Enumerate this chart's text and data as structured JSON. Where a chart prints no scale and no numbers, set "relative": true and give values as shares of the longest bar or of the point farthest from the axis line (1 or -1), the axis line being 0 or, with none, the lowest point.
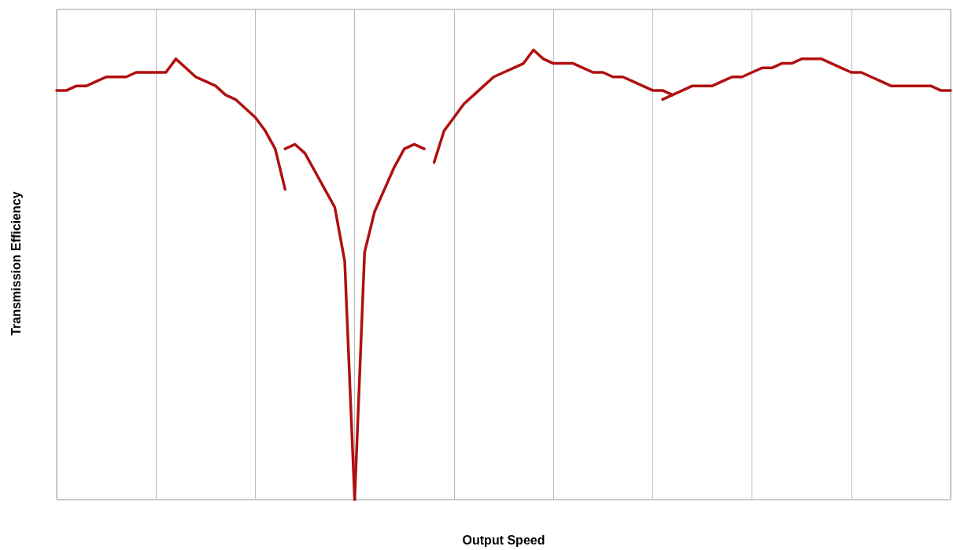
{
  "chart_data": {
    "type": "line",
    "xlabel": "Output Speed",
    "ylabel": "Transmission Efficiency",
    "relative": true,
    "grid": "x",
    "marker": "none",
    "categories": [
      null,
      null,
      null,
      null,
      null,
      null,
      null,
      null,
      null,
      null,
      null,
      null,
      null,
      null,
      null,
      null,
      null,
      null,
      null,
      null,
      null,
      null,
      null,
      null,
      null,
      null,
      null,
      null,
      null,
      null,
      null,
      null,
      null,
      null,
      null,
      null,
      null,
      null,
      null,
      null,
      null,
      null,
      null,
      null,
      null,
      null,
      null,
      null,
      null,
      null,
      null,
      null,
      null,
      null,
      null,
      null,
      null,
      null,
      null,
      null,
      null,
      null,
      null,
      null,
      null,
      null,
      null,
      null,
      null,
      null,
      null,
      null,
      null,
      null,
      null,
      null,
      null,
      null,
      null,
      null,
      null,
      null,
      null,
      null,
      null,
      null,
      null,
      null,
      null,
      null,
      null
    ],
    "series": [
      {
        "color": "#b01010",
        "values": [
          0.91,
          0.91,
          0.92,
          0.92,
          0.93,
          0.94,
          0.94,
          0.94,
          0.95,
          0.95,
          0.95,
          0.95,
          0.98,
          0.96,
          0.94,
          0.93,
          0.92,
          0.9,
          0.89,
          0.87,
          0.85,
          0.82,
          0.78,
          0.69,
          null,
          null,
          null,
          null,
          null,
          null,
          null,
          null,
          null,
          null,
          null,
          null,
          null,
          null,
          null,
          null,
          null,
          null,
          null,
          null,
          null,
          null,
          null,
          null,
          null,
          null,
          null,
          null,
          null,
          null,
          null,
          null,
          null,
          null,
          null,
          null,
          null,
          null,
          null,
          null,
          null,
          null,
          null,
          null,
          null,
          null,
          null,
          null,
          null,
          null,
          null,
          null,
          null,
          null,
          null,
          null,
          null,
          null,
          null,
          null,
          null,
          null,
          null,
          null,
          null,
          null,
          null
        ]
      },
      {
        "color": "#b01010",
        "values": [
          null,
          null,
          null,
          null,
          null,
          null,
          null,
          null,
          null,
          null,
          null,
          null,
          null,
          null,
          null,
          null,
          null,
          null,
          null,
          null,
          null,
          null,
          null,
          0.78,
          0.79,
          0.77,
          0.73,
          0.69,
          0.65,
          0.53,
          0,
          null,
          null,
          null,
          null,
          null,
          null,
          null,
          null,
          null,
          null,
          null,
          null,
          null,
          null,
          null,
          null,
          null,
          null,
          null,
          null,
          null,
          null,
          null,
          null,
          null,
          null,
          null,
          null,
          null,
          null,
          null,
          null,
          null,
          null,
          null,
          null,
          null,
          null,
          null,
          null,
          null,
          null,
          null,
          null,
          null,
          null,
          null,
          null,
          null,
          null,
          null,
          null,
          null,
          null,
          null,
          null,
          null,
          null,
          null,
          null
        ]
      },
      {
        "color": "#b01010",
        "values": [
          null,
          null,
          null,
          null,
          null,
          null,
          null,
          null,
          null,
          null,
          null,
          null,
          null,
          null,
          null,
          null,
          null,
          null,
          null,
          null,
          null,
          null,
          null,
          null,
          null,
          null,
          null,
          null,
          null,
          null,
          0,
          0.55,
          0.64,
          0.69,
          0.74,
          0.78,
          0.79,
          0.78,
          null,
          null,
          null,
          null,
          null,
          null,
          null,
          null,
          null,
          null,
          null,
          null,
          null,
          null,
          null,
          null,
          null,
          null,
          null,
          null,
          null,
          null,
          null,
          null,
          null,
          null,
          null,
          null,
          null,
          null,
          null,
          null,
          null,
          null,
          null,
          null,
          null,
          null,
          null,
          null,
          null,
          null,
          null,
          null,
          null,
          null,
          null,
          null,
          null,
          null,
          null,
          null,
          null
        ]
      },
      {
        "color": "#b01010",
        "values": [
          null,
          null,
          null,
          null,
          null,
          null,
          null,
          null,
          null,
          null,
          null,
          null,
          null,
          null,
          null,
          null,
          null,
          null,
          null,
          null,
          null,
          null,
          null,
          null,
          null,
          null,
          null,
          null,
          null,
          null,
          null,
          null,
          null,
          null,
          null,
          null,
          null,
          null,
          0.75,
          0.82,
          0.85,
          0.88,
          0.9,
          0.92,
          0.94,
          0.95,
          0.96,
          0.97,
          1.0,
          0.98,
          0.97,
          0.97,
          0.97,
          0.96,
          0.95,
          0.95,
          0.94,
          0.94,
          0.93,
          0.92,
          0.91,
          0.91,
          0.9,
          null,
          null,
          null,
          null,
          null,
          null,
          null,
          null,
          null,
          null,
          null,
          null,
          null,
          null,
          null,
          null,
          null,
          null,
          null,
          null,
          null,
          null,
          null,
          null,
          null,
          null,
          null,
          null
        ]
      },
      {
        "color": "#b01010",
        "values": [
          null,
          null,
          null,
          null,
          null,
          null,
          null,
          null,
          null,
          null,
          null,
          null,
          null,
          null,
          null,
          null,
          null,
          null,
          null,
          null,
          null,
          null,
          null,
          null,
          null,
          null,
          null,
          null,
          null,
          null,
          null,
          null,
          null,
          null,
          null,
          null,
          null,
          null,
          null,
          null,
          null,
          null,
          null,
          null,
          null,
          null,
          null,
          null,
          null,
          null,
          null,
          null,
          null,
          null,
          null,
          null,
          null,
          null,
          null,
          null,
          null,
          0.89,
          0.9,
          0.91,
          0.92,
          0.92,
          0.92,
          0.93,
          0.94,
          0.94,
          0.95,
          0.96,
          0.96,
          0.97,
          0.97,
          0.98,
          0.98,
          0.98,
          0.97,
          0.96,
          0.95,
          0.95,
          0.94,
          0.93,
          0.92,
          0.92,
          0.92,
          0.92,
          0.92,
          0.91,
          0.91
        ]
      }
    ]
  }
}
